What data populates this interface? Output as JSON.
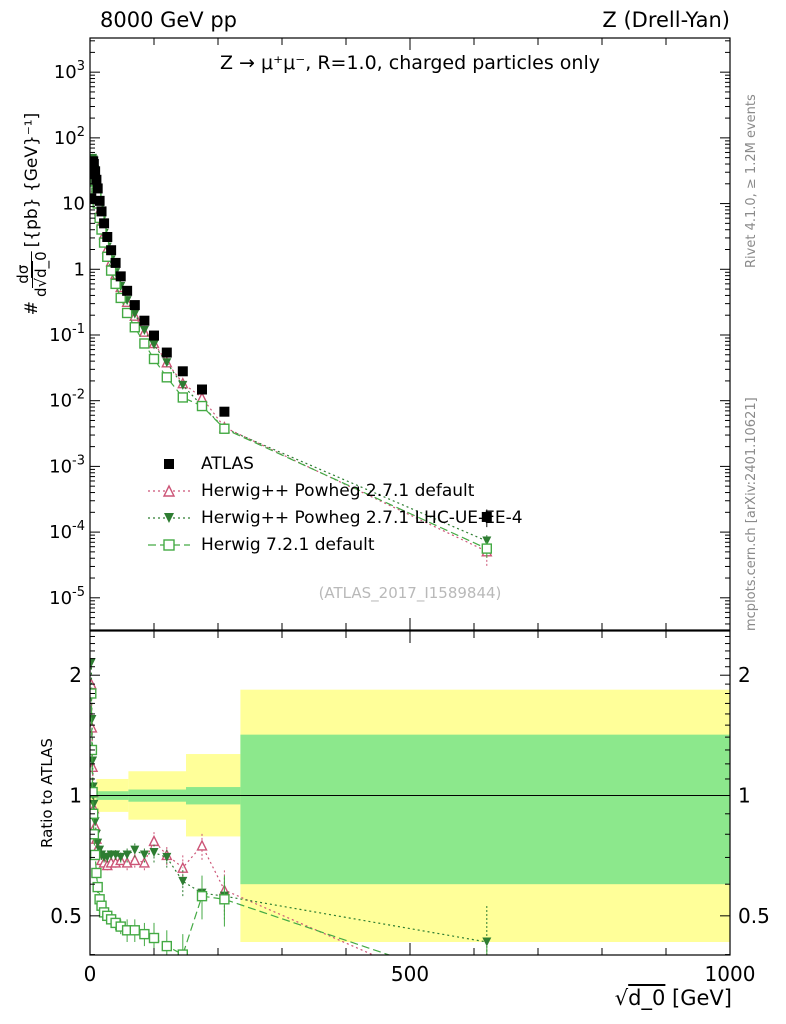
{
  "header": {
    "left": "8000 GeV pp",
    "right": "Z (Drell-Yan)"
  },
  "main_panel": {
    "title": "Z → μ⁺μ⁻, R=1.0, charged particles only",
    "watermark": "(ATLAS_2017_I1589844)",
    "ylabel_prefix": "#",
    "ylabel_num": "dσ",
    "ylabel_den_root": "d√",
    "ylabel_den_arg": "d_0",
    "ylabel_units": "[{pb} {GeV}⁻¹]"
  },
  "ratio_panel": {
    "ylabel": "Ratio to ATLAS"
  },
  "xaxis": {
    "root": "√",
    "arg": "d_0",
    "units": " [GeV]"
  },
  "sidebar": {
    "top": "Rivet 4.1.0, ≥ 1.2M events",
    "bottom": "mcplots.cern.ch [arXiv:2401.10621]"
  },
  "chart_data": {
    "type": "line",
    "title": "Z → μ⁺μ⁻, R=1.0, charged particles only",
    "xlabel": "√d_0 [GeV]",
    "ylabel": "# dσ/d√d_0 [{pb} {GeV}^-1]",
    "ratio_ylabel": "Ratio to ATLAS",
    "xlim": [
      0,
      1000
    ],
    "xticks": [
      0,
      500,
      1000
    ],
    "ylog": true,
    "y_exp_min": -5,
    "y_exp_max": 3,
    "ylim_log10": [
      -5.49,
      3.52
    ],
    "ratio_log2": true,
    "ratio_ylim": [
      0.399,
      2.58
    ],
    "ratio_ticks": [
      2,
      1,
      0.5
    ],
    "atlas_label": "ATLAS",
    "atlas_marker": "square-filled",
    "atlas_color": "#000000",
    "atlas_err_frac_default": 0.05,
    "atlas_err_frac_last": 0.3,
    "x": [
      2,
      3,
      4,
      5,
      6,
      8,
      10,
      12,
      15,
      18,
      22,
      27,
      33,
      40,
      48,
      58,
      70,
      85,
      100,
      120,
      145,
      175,
      210,
      620
    ],
    "atlas": [
      12,
      28,
      40,
      44,
      40,
      31,
      23,
      17,
      11,
      7.6,
      5.0,
      3.1,
      1.95,
      1.25,
      0.78,
      0.47,
      0.285,
      0.165,
      0.098,
      0.054,
      0.028,
      0.0148,
      0.0068,
      0.00017
    ],
    "series": [
      {
        "name": "Herwig++ Powheg 2.7.1 default",
        "color": "#cc5577",
        "dash": "dotted",
        "marker": "triangle-open",
        "ratio": [
          1.9,
          1.48,
          1.18,
          1.02,
          0.93,
          0.84,
          0.78,
          0.74,
          0.71,
          0.69,
          0.68,
          0.67,
          0.68,
          0.68,
          0.69,
          0.68,
          0.69,
          0.68,
          0.77,
          0.71,
          0.66,
          0.75,
          0.58,
          0.3
        ],
        "ratio_err": [
          0.06,
          0.05,
          0.04,
          0.03,
          0.03,
          0.02,
          0.02,
          0.02,
          0.02,
          0.02,
          0.02,
          0.02,
          0.02,
          0.02,
          0.02,
          0.03,
          0.03,
          0.03,
          0.04,
          0.04,
          0.05,
          0.06,
          0.07,
          0.12
        ]
      },
      {
        "name": "Herwig++ Powheg 2.7.1 LHC-UE-EE-4",
        "color": "#2e7d32",
        "dash": "dotted",
        "marker": "triangle-down-filled",
        "ratio": [
          2.15,
          1.55,
          1.22,
          1.05,
          0.95,
          0.86,
          0.8,
          0.76,
          0.73,
          0.71,
          0.7,
          0.7,
          0.71,
          0.71,
          0.7,
          0.71,
          0.73,
          0.71,
          0.72,
          0.7,
          0.61,
          0.57,
          0.56,
          0.43
        ],
        "ratio_err": [
          0.07,
          0.05,
          0.04,
          0.03,
          0.03,
          0.02,
          0.02,
          0.02,
          0.02,
          0.02,
          0.02,
          0.02,
          0.02,
          0.02,
          0.02,
          0.03,
          0.03,
          0.03,
          0.04,
          0.04,
          0.05,
          0.06,
          0.07,
          0.1
        ]
      },
      {
        "name": "Herwig 7.2.1 default",
        "color": "#44aa44",
        "dash": "dashed",
        "marker": "square-open",
        "ratio": [
          1.8,
          1.3,
          1.02,
          0.9,
          0.8,
          0.71,
          0.64,
          0.59,
          0.55,
          0.53,
          0.51,
          0.5,
          0.49,
          0.48,
          0.47,
          0.46,
          0.46,
          0.45,
          0.44,
          0.42,
          0.4,
          0.56,
          0.55,
          0.33
        ],
        "ratio_err": [
          0.06,
          0.05,
          0.04,
          0.03,
          0.03,
          0.02,
          0.02,
          0.02,
          0.02,
          0.02,
          0.02,
          0.02,
          0.02,
          0.02,
          0.02,
          0.03,
          0.03,
          0.03,
          0.04,
          0.04,
          0.05,
          0.07,
          0.08,
          0.09
        ]
      }
    ],
    "bands": [
      {
        "x0": 0,
        "x1": 10,
        "yellow": [
          0.95,
          1.05
        ],
        "green": [
          0.985,
          1.015
        ]
      },
      {
        "x0": 10,
        "x1": 60,
        "yellow": [
          0.91,
          1.1
        ],
        "green": [
          0.975,
          1.025
        ]
      },
      {
        "x0": 60,
        "x1": 150,
        "yellow": [
          0.87,
          1.15
        ],
        "green": [
          0.965,
          1.035
        ]
      },
      {
        "x0": 150,
        "x1": 235,
        "yellow": [
          0.79,
          1.27
        ],
        "green": [
          0.95,
          1.05
        ]
      },
      {
        "x0": 235,
        "x1": 1000,
        "yellow": [
          0.43,
          1.84
        ],
        "green": [
          0.6,
          1.42
        ]
      }
    ],
    "band_colors": {
      "yellow": "#ffff99",
      "green": "#8ce88c"
    }
  }
}
